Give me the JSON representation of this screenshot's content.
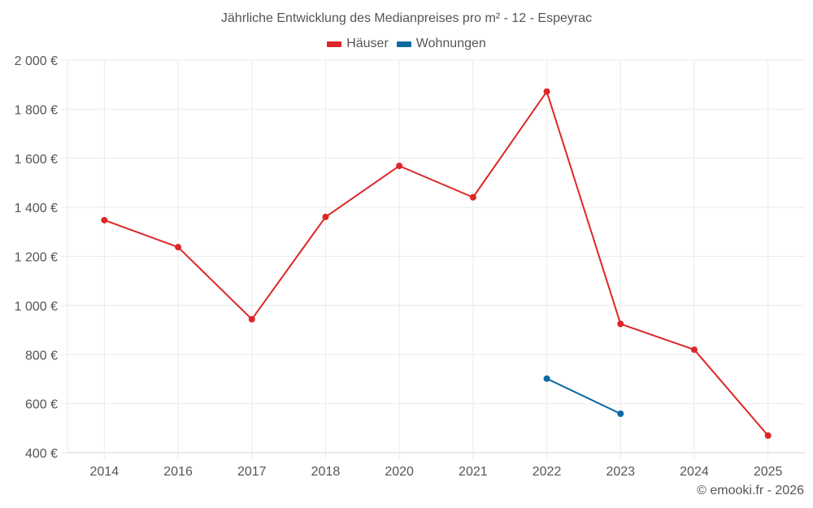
{
  "chart_data": {
    "type": "line",
    "title": "Jährliche Entwicklung des Medianpreises pro m² - 12 - Espeyrac",
    "xlabel": "",
    "ylabel": "",
    "categories": [
      "2014",
      "2016",
      "2017",
      "2018",
      "2020",
      "2021",
      "2022",
      "2023",
      "2024",
      "2025"
    ],
    "series": [
      {
        "name": "Häuser",
        "color": "#dd2727",
        "values": [
          1348,
          1238,
          944,
          1361,
          1569,
          1441,
          1872,
          925,
          820,
          470
        ]
      },
      {
        "name": "Wohnungen",
        "color": "#0b6aa2",
        "values": [
          null,
          null,
          null,
          null,
          null,
          null,
          702,
          559,
          null,
          null
        ]
      }
    ],
    "ylim": [
      400,
      2000
    ],
    "yticks": [
      400,
      600,
      800,
      1000,
      1200,
      1400,
      1600,
      1800,
      2000
    ],
    "ytick_labels": [
      "400 €",
      "600 €",
      "800 €",
      "1 000 €",
      "1 200 €",
      "1 400 €",
      "1 600 €",
      "1 800 €",
      "2 000 €"
    ],
    "grid": true,
    "legend_position": "top-center"
  },
  "legend": {
    "items": [
      {
        "label": "Häuser",
        "color": "#dd2727"
      },
      {
        "label": "Wohnungen",
        "color": "#0b6aa2"
      }
    ]
  },
  "footer": {
    "credit": "© emooki.fr - 2026"
  }
}
